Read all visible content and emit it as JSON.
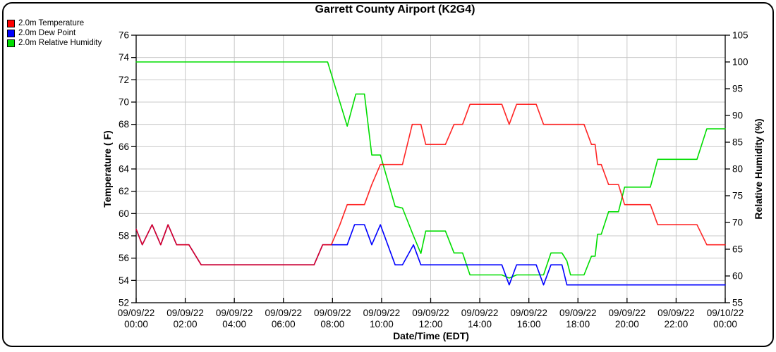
{
  "chart_data": {
    "type": "line",
    "title": "Garrett County Airport (K2G4)",
    "xlabel": "Date/Time (EDT)",
    "ylabel_left": "Temperature ( F)",
    "ylabel_right": "Relative Humidity (%)",
    "x_unit": "hours since 09/09/22 00:00 EDT",
    "xlim_hours": [
      0,
      24
    ],
    "x_start_label": "09/09/22 00:00",
    "x_end_label": "09/10/22 00:00",
    "ylim_left": [
      52,
      76
    ],
    "ylim_right": [
      55,
      105
    ],
    "grid": true,
    "legend_position": "top-left",
    "yticks_left": [
      52,
      54,
      56,
      58,
      60,
      62,
      64,
      66,
      68,
      70,
      72,
      74,
      76
    ],
    "yticks_right": [
      55,
      60,
      65,
      70,
      75,
      80,
      85,
      90,
      95,
      100,
      105
    ],
    "xticks": [
      {
        "hour": 0,
        "date": "09/09/22",
        "time": "00:00"
      },
      {
        "hour": 2,
        "date": "09/09/22",
        "time": "02:00"
      },
      {
        "hour": 4,
        "date": "09/09/22",
        "time": "04:00"
      },
      {
        "hour": 6,
        "date": "09/09/22",
        "time": "06:00"
      },
      {
        "hour": 8,
        "date": "09/09/22",
        "time": "08:00"
      },
      {
        "hour": 10,
        "date": "09/09/22",
        "time": "10:00"
      },
      {
        "hour": 12,
        "date": "09/09/22",
        "time": "12:00"
      },
      {
        "hour": 14,
        "date": "09/09/22",
        "time": "14:00"
      },
      {
        "hour": 16,
        "date": "09/09/22",
        "time": "16:00"
      },
      {
        "hour": 18,
        "date": "09/09/22",
        "time": "18:00"
      },
      {
        "hour": 20,
        "date": "09/09/22",
        "time": "20:00"
      },
      {
        "hour": 22,
        "date": "09/09/22",
        "time": "22:00"
      },
      {
        "hour": 24,
        "date": "09/10/22",
        "time": "00:00"
      }
    ],
    "colors": {
      "grid": "#c8c8c8",
      "axis": "#000000",
      "background": "#ffffff"
    },
    "series": [
      {
        "name": "2.0m Temperature",
        "axis": "left",
        "unit": "F",
        "color": "#ff0000",
        "points": [
          [
            0,
            58.6
          ],
          [
            0.25,
            57.2
          ],
          [
            0.65,
            59
          ],
          [
            1.0,
            57.2
          ],
          [
            1.3,
            59
          ],
          [
            1.65,
            57.2
          ],
          [
            2.15,
            57.2
          ],
          [
            2.65,
            55.4
          ],
          [
            7.25,
            55.4
          ],
          [
            7.6,
            57.2
          ],
          [
            7.95,
            57.2
          ],
          [
            8.3,
            59
          ],
          [
            8.6,
            60.8
          ],
          [
            9.3,
            60.8
          ],
          [
            9.6,
            62.6
          ],
          [
            9.95,
            64.4
          ],
          [
            10.85,
            64.4
          ],
          [
            11.25,
            68
          ],
          [
            11.6,
            68
          ],
          [
            11.8,
            66.2
          ],
          [
            12.6,
            66.2
          ],
          [
            12.95,
            68
          ],
          [
            13.3,
            68
          ],
          [
            13.6,
            69.8
          ],
          [
            14.9,
            69.8
          ],
          [
            15.2,
            68
          ],
          [
            15.5,
            69.8
          ],
          [
            16.3,
            69.8
          ],
          [
            16.6,
            68
          ],
          [
            18.25,
            68
          ],
          [
            18.55,
            66.2
          ],
          [
            18.7,
            66.2
          ],
          [
            18.8,
            64.4
          ],
          [
            18.95,
            64.4
          ],
          [
            19.25,
            62.6
          ],
          [
            19.65,
            62.6
          ],
          [
            19.9,
            60.8
          ],
          [
            20.95,
            60.8
          ],
          [
            21.25,
            59
          ],
          [
            22.85,
            59
          ],
          [
            23.25,
            57.2
          ],
          [
            24,
            57.2
          ]
        ]
      },
      {
        "name": "2.0m Dew Point",
        "axis": "left",
        "unit": "F",
        "color": "#0000ff",
        "points": [
          [
            0,
            58.6
          ],
          [
            0.25,
            57.2
          ],
          [
            0.65,
            59
          ],
          [
            1.0,
            57.2
          ],
          [
            1.3,
            59
          ],
          [
            1.65,
            57.2
          ],
          [
            2.15,
            57.2
          ],
          [
            2.65,
            55.4
          ],
          [
            7.25,
            55.4
          ],
          [
            7.6,
            57.2
          ],
          [
            8.6,
            57.2
          ],
          [
            8.9,
            59
          ],
          [
            9.3,
            59
          ],
          [
            9.6,
            57.2
          ],
          [
            9.95,
            59
          ],
          [
            10.55,
            55.4
          ],
          [
            10.85,
            55.4
          ],
          [
            11.3,
            57.2
          ],
          [
            11.6,
            55.4
          ],
          [
            14.9,
            55.4
          ],
          [
            15.2,
            53.6
          ],
          [
            15.5,
            55.4
          ],
          [
            16.3,
            55.4
          ],
          [
            16.6,
            53.6
          ],
          [
            16.9,
            55.4
          ],
          [
            17.35,
            55.4
          ],
          [
            17.55,
            53.6
          ],
          [
            24,
            53.6
          ]
        ]
      },
      {
        "name": "2.0m Relative Humidity",
        "axis": "right",
        "unit": "%",
        "color": "#00dd00",
        "points": [
          [
            0,
            100
          ],
          [
            7.8,
            100
          ],
          [
            8.6,
            88
          ],
          [
            8.95,
            94
          ],
          [
            9.3,
            94
          ],
          [
            9.6,
            82.6
          ],
          [
            9.95,
            82.6
          ],
          [
            10.55,
            73
          ],
          [
            10.85,
            72.7
          ],
          [
            11.3,
            67.5
          ],
          [
            11.6,
            64.2
          ],
          [
            11.8,
            68.4
          ],
          [
            12.6,
            68.4
          ],
          [
            12.95,
            64.3
          ],
          [
            13.3,
            64.3
          ],
          [
            13.6,
            60.2
          ],
          [
            14.9,
            60.2
          ],
          [
            15.2,
            59.6
          ],
          [
            15.5,
            60.2
          ],
          [
            16.6,
            60.2
          ],
          [
            16.9,
            64.3
          ],
          [
            17.35,
            64.3
          ],
          [
            17.55,
            62.8
          ],
          [
            17.7,
            60.2
          ],
          [
            18.25,
            60.2
          ],
          [
            18.55,
            63.7
          ],
          [
            18.7,
            63.7
          ],
          [
            18.8,
            67.8
          ],
          [
            18.95,
            67.8
          ],
          [
            19.25,
            72
          ],
          [
            19.65,
            72
          ],
          [
            19.9,
            76.6
          ],
          [
            20.95,
            76.6
          ],
          [
            21.25,
            81.8
          ],
          [
            22.85,
            81.8
          ],
          [
            23.25,
            87.5
          ],
          [
            24,
            87.5
          ]
        ]
      }
    ]
  }
}
